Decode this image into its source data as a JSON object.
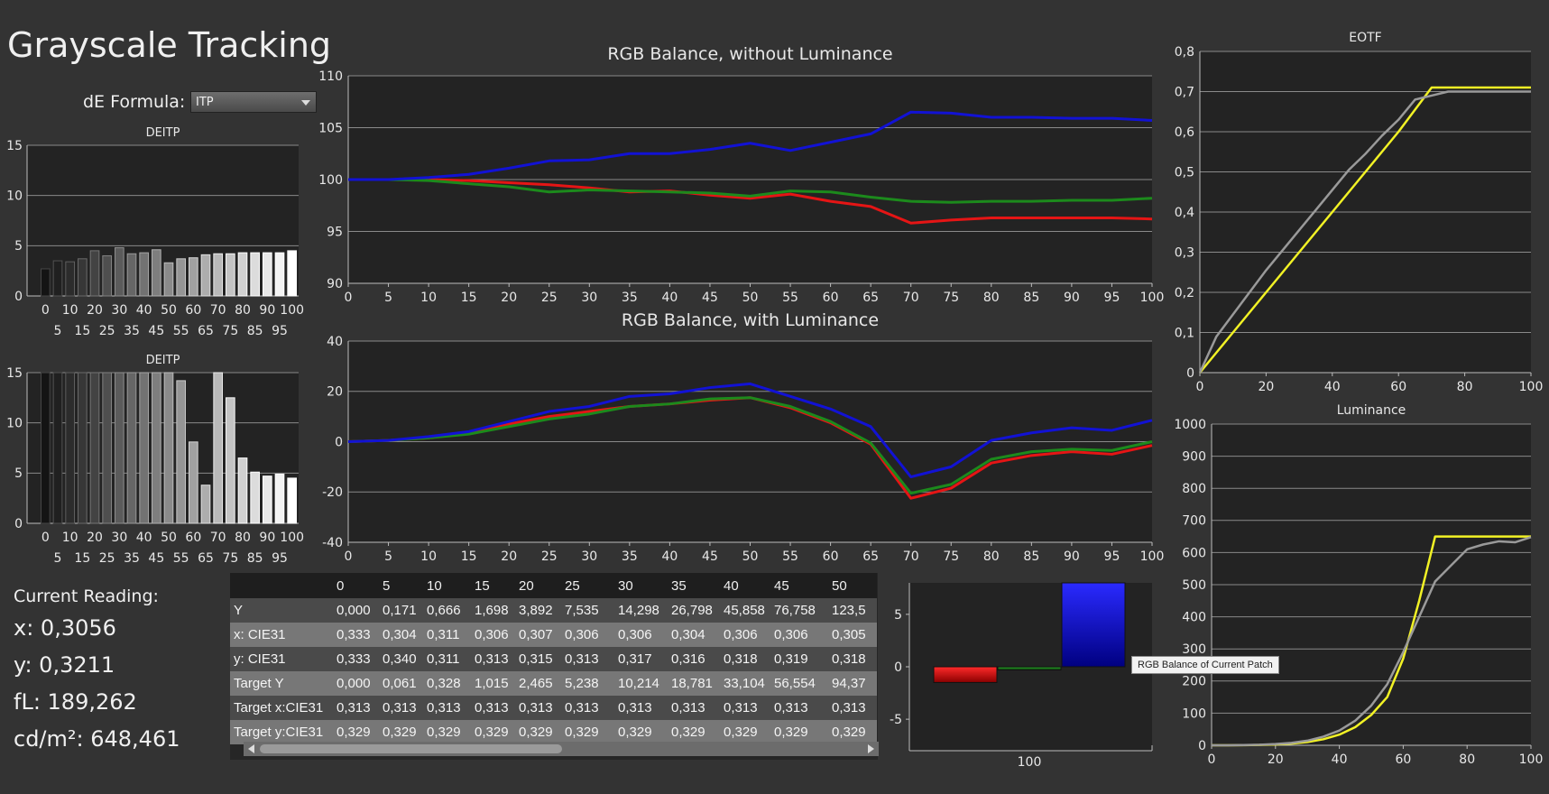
{
  "page": {
    "title": "Grayscale Tracking",
    "formula_label": "dE Formula:",
    "formula_value": "ITP",
    "tooltip": "RGB Balance of Current Patch"
  },
  "colors": {
    "red": "#e51515",
    "green": "#1c8a1c",
    "blue": "#1212d4",
    "yellow": "#f2f225",
    "gray": "#9a9a9a",
    "background": "#333333",
    "plot_bg": "#232323"
  },
  "reading": {
    "heading": "Current Reading:",
    "x": "x: 0,3056",
    "y": "y: 0,3211",
    "fl": "fL: 189,262",
    "cdm2": "cd/m²: 648,461"
  },
  "table": {
    "columns": [
      "0",
      "5",
      "10",
      "15",
      "20",
      "25",
      "30",
      "35",
      "40",
      "45",
      "50"
    ],
    "rows": [
      {
        "label": "Y",
        "values": [
          "0,000",
          "0,171",
          "0,666",
          "1,698",
          "3,892",
          "7,535",
          "14,298",
          "26,798",
          "45,858",
          "76,758",
          "123,5"
        ]
      },
      {
        "label": "x: CIE31",
        "values": [
          "0,333",
          "0,304",
          "0,311",
          "0,306",
          "0,307",
          "0,306",
          "0,306",
          "0,304",
          "0,306",
          "0,306",
          "0,305"
        ]
      },
      {
        "label": "y: CIE31",
        "values": [
          "0,333",
          "0,340",
          "0,311",
          "0,313",
          "0,315",
          "0,313",
          "0,317",
          "0,316",
          "0,318",
          "0,319",
          "0,318"
        ]
      },
      {
        "label": "Target Y",
        "values": [
          "0,000",
          "0,061",
          "0,328",
          "1,015",
          "2,465",
          "5,238",
          "10,214",
          "18,781",
          "33,104",
          "56,554",
          "94,37"
        ]
      },
      {
        "label": "Target x:CIE31",
        "values": [
          "0,313",
          "0,313",
          "0,313",
          "0,313",
          "0,313",
          "0,313",
          "0,313",
          "0,313",
          "0,313",
          "0,313",
          "0,313"
        ]
      },
      {
        "label": "Target y:CIE31",
        "values": [
          "0,329",
          "0,329",
          "0,329",
          "0,329",
          "0,329",
          "0,329",
          "0,329",
          "0,329",
          "0,329",
          "0,329",
          "0,329"
        ]
      }
    ]
  },
  "chart_data": [
    {
      "id": "deitp1",
      "type": "bar",
      "title": "DEITP",
      "categories": [
        0,
        5,
        10,
        15,
        20,
        25,
        30,
        35,
        40,
        45,
        50,
        55,
        60,
        65,
        70,
        75,
        80,
        85,
        90,
        95,
        100
      ],
      "values": [
        2.7,
        3.5,
        3.4,
        3.7,
        4.5,
        4.0,
        4.8,
        4.2,
        4.3,
        4.6,
        3.3,
        3.7,
        3.8,
        4.1,
        4.2,
        4.2,
        4.3,
        4.3,
        4.3,
        4.3,
        4.5
      ],
      "ylim": [
        0,
        15
      ],
      "yticks": [
        0,
        5,
        10,
        15
      ],
      "xticks_top": [
        0,
        10,
        20,
        30,
        40,
        50,
        60,
        70,
        80,
        90,
        100
      ],
      "xticks_bottom": [
        5,
        15,
        25,
        35,
        45,
        55,
        65,
        75,
        85,
        95
      ]
    },
    {
      "id": "deitp2",
      "type": "bar",
      "title": "DEITP",
      "categories": [
        0,
        5,
        10,
        15,
        20,
        25,
        30,
        35,
        40,
        45,
        50,
        55,
        60,
        65,
        70,
        75,
        80,
        85,
        90,
        95,
        100
      ],
      "values": [
        15,
        15,
        15,
        15,
        15,
        15,
        15,
        15,
        15,
        15,
        15,
        14.2,
        8.1,
        3.8,
        15,
        12.5,
        6.5,
        5.1,
        4.7,
        4.9,
        4.5
      ],
      "ylim": [
        0,
        15
      ],
      "yticks": [
        0,
        5,
        10,
        15
      ],
      "xticks_top": [
        0,
        10,
        20,
        30,
        40,
        50,
        60,
        70,
        80,
        90,
        100
      ],
      "xticks_bottom": [
        5,
        15,
        25,
        35,
        45,
        55,
        65,
        75,
        85,
        95
      ]
    },
    {
      "id": "rgb_no_lum",
      "type": "line",
      "title": "RGB Balance, without Luminance",
      "x": [
        0,
        5,
        10,
        15,
        20,
        25,
        30,
        35,
        40,
        45,
        50,
        55,
        60,
        65,
        70,
        75,
        80,
        85,
        90,
        95,
        100
      ],
      "xticks": [
        0,
        5,
        10,
        15,
        20,
        25,
        30,
        35,
        40,
        45,
        50,
        55,
        60,
        65,
        70,
        75,
        80,
        85,
        90,
        95,
        100
      ],
      "ylim": [
        90,
        110
      ],
      "yticks": [
        90,
        95,
        100,
        105,
        110
      ],
      "series": [
        {
          "color": "red",
          "values": [
            100,
            100,
            100,
            99.9,
            99.7,
            99.5,
            99.2,
            98.8,
            98.9,
            98.5,
            98.2,
            98.6,
            97.9,
            97.4,
            95.8,
            96.1,
            96.3,
            96.3,
            96.3,
            96.3,
            96.2
          ]
        },
        {
          "color": "green",
          "values": [
            100,
            100,
            99.9,
            99.6,
            99.3,
            98.8,
            99.0,
            98.9,
            98.8,
            98.7,
            98.4,
            98.9,
            98.8,
            98.3,
            97.9,
            97.8,
            97.9,
            97.9,
            98.0,
            98.0,
            98.2
          ]
        },
        {
          "color": "blue",
          "values": [
            100,
            100,
            100.2,
            100.5,
            101.1,
            101.8,
            101.9,
            102.5,
            102.5,
            102.9,
            103.5,
            102.8,
            103.6,
            104.4,
            106.5,
            106.4,
            106.0,
            106.0,
            105.9,
            105.9,
            105.7
          ]
        }
      ]
    },
    {
      "id": "rgb_lum",
      "type": "line",
      "title": "RGB Balance, with Luminance",
      "x": [
        0,
        5,
        10,
        15,
        20,
        25,
        30,
        35,
        40,
        45,
        50,
        55,
        60,
        65,
        70,
        75,
        80,
        85,
        90,
        95,
        100
      ],
      "xticks": [
        0,
        5,
        10,
        15,
        20,
        25,
        30,
        35,
        40,
        45,
        50,
        55,
        60,
        65,
        70,
        75,
        80,
        85,
        90,
        95,
        100
      ],
      "ylim": [
        -40,
        40
      ],
      "yticks": [
        -40,
        -20,
        0,
        20,
        40
      ],
      "series": [
        {
          "color": "red",
          "values": [
            0,
            0.5,
            1.5,
            3.5,
            7,
            10,
            12,
            14,
            15,
            16.5,
            17.5,
            13.5,
            7.5,
            -1,
            -22.5,
            -18.5,
            -8.5,
            -5.5,
            -4,
            -5,
            -1.5
          ]
        },
        {
          "color": "green",
          "values": [
            0,
            0.5,
            1.5,
            3,
            6,
            9,
            11,
            14,
            15,
            17,
            17.5,
            14,
            8,
            -0.5,
            -20.5,
            -17,
            -7,
            -4,
            -3,
            -3.5,
            0
          ]
        },
        {
          "color": "blue",
          "values": [
            0,
            0.5,
            2,
            4,
            8,
            12,
            14,
            18,
            19,
            21.5,
            23,
            18,
            13,
            6,
            -14,
            -10,
            0.5,
            3.5,
            5.5,
            4.5,
            8.5
          ]
        }
      ]
    },
    {
      "id": "eotf",
      "type": "line",
      "title": "EOTF",
      "x": [
        0,
        5,
        10,
        15,
        20,
        25,
        30,
        35,
        40,
        45,
        50,
        55,
        60,
        65,
        70,
        75,
        80,
        85,
        90,
        95,
        100
      ],
      "xticks": [
        0,
        20,
        40,
        60,
        80,
        100
      ],
      "ylim": [
        0,
        0.8
      ],
      "yticks": [
        "0",
        "0,1",
        "0,2",
        "0,3",
        "0,4",
        "0,5",
        "0,6",
        "0,7",
        "0,8"
      ],
      "series": [
        {
          "color": "yellow",
          "values": [
            0,
            0.05,
            0.1,
            0.15,
            0.2,
            0.25,
            0.3,
            0.35,
            0.4,
            0.45,
            0.5,
            0.55,
            0.6,
            0.655,
            0.71,
            0.71,
            0.71,
            0.71,
            0.71,
            0.71,
            0.71
          ]
        },
        {
          "color": "gray",
          "values": [
            0,
            0.09,
            0.145,
            0.2,
            0.255,
            0.305,
            0.355,
            0.405,
            0.455,
            0.505,
            0.545,
            0.59,
            0.63,
            0.68,
            0.69,
            0.7,
            0.7,
            0.7,
            0.7,
            0.7,
            0.7
          ]
        }
      ]
    },
    {
      "id": "luminance",
      "type": "line",
      "title": "Luminance",
      "x": [
        0,
        5,
        10,
        15,
        20,
        25,
        30,
        35,
        40,
        45,
        50,
        55,
        60,
        65,
        70,
        75,
        80,
        85,
        90,
        95,
        100
      ],
      "xticks": [
        0,
        20,
        40,
        60,
        80,
        100
      ],
      "ylim": [
        0,
        1000
      ],
      "yticks": [
        0,
        100,
        200,
        300,
        400,
        500,
        600,
        700,
        800,
        900,
        1000
      ],
      "series": [
        {
          "color": "yellow",
          "values": [
            0,
            0.06,
            0.33,
            1,
            2.5,
            5.2,
            10.2,
            18.8,
            33.1,
            56.6,
            94.4,
            150,
            270,
            450,
            650,
            650,
            650,
            650,
            650,
            650,
            650
          ]
        },
        {
          "color": "gray",
          "values": [
            0,
            0.17,
            0.67,
            1.7,
            3.9,
            7.5,
            14.3,
            26.8,
            45.9,
            76.8,
            123.5,
            190,
            290,
            400,
            510,
            560,
            610,
            625,
            635,
            632,
            648
          ]
        }
      ]
    },
    {
      "id": "current_patch",
      "type": "bar",
      "title": "",
      "categories": [
        "100"
      ],
      "ylim": [
        -8,
        8
      ],
      "yticks": [
        -5,
        0,
        5
      ],
      "series": [
        {
          "color": "red",
          "value": -1.5
        },
        {
          "color": "green",
          "value": -0.3
        },
        {
          "color": "blue",
          "value": 8
        }
      ]
    }
  ]
}
